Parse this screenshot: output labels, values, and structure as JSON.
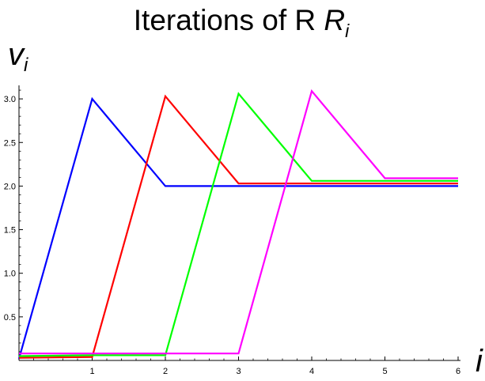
{
  "chart_data": {
    "type": "line",
    "title": "Iterations of R",
    "title_subscript": "i",
    "xlabel": "i",
    "ylabel": "v",
    "ylabel_subscript": "i",
    "xlim": [
      0,
      6
    ],
    "ylim": [
      0,
      3.1
    ],
    "x_ticks": [
      1,
      2,
      3,
      4,
      5,
      6
    ],
    "y_ticks": [
      0.5,
      1.0,
      1.5,
      2.0,
      2.5,
      3.0
    ],
    "y_tick_labels": [
      "0.5",
      "1.0",
      "1.5",
      "2.0",
      "2.5",
      "3.0"
    ],
    "x_tick_labels": [
      "1",
      "2",
      "3",
      "4",
      "5",
      "6"
    ],
    "grid": false,
    "series": [
      {
        "color": "#0000ff",
        "x": [
          0,
          1,
          2,
          3,
          4,
          5,
          6
        ],
        "y": [
          0.02,
          3.0,
          2.0,
          2.0,
          2.0,
          2.0,
          2.0
        ]
      },
      {
        "color": "#ff0000",
        "x": [
          0,
          1,
          2,
          3,
          4,
          5,
          6
        ],
        "y": [
          0.03,
          0.04,
          3.03,
          2.03,
          2.03,
          2.03,
          2.03
        ]
      },
      {
        "color": "#00ff00",
        "x": [
          0,
          1,
          2,
          3,
          4,
          5,
          6
        ],
        "y": [
          0.05,
          0.06,
          0.06,
          3.06,
          2.06,
          2.06,
          2.06
        ]
      },
      {
        "color": "#ff00ff",
        "x": [
          0,
          1,
          2,
          3,
          4,
          5,
          6
        ],
        "y": [
          0.08,
          0.08,
          0.08,
          0.08,
          3.09,
          2.09,
          2.09
        ]
      }
    ]
  }
}
